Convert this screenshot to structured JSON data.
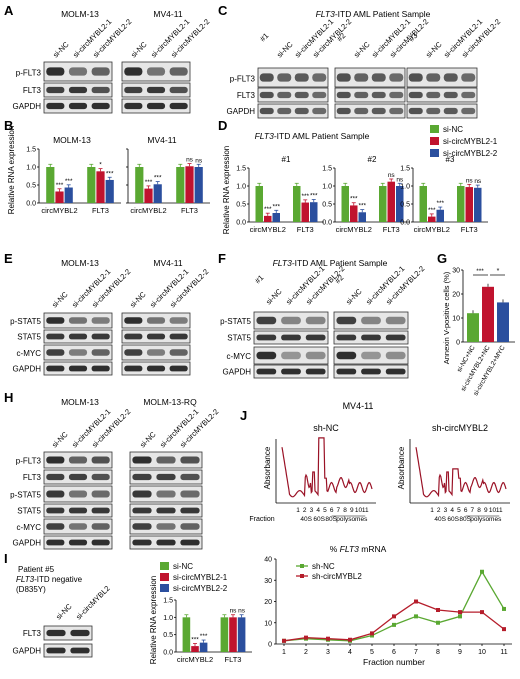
{
  "colors": {
    "nc": "#5aa832",
    "c1": "#c0132e",
    "c2": "#2b4f9e",
    "trace": "#9a1226",
    "shnc": "#5aa832",
    "shc": "#b51d2b"
  },
  "panels": {
    "A": {
      "letter": "A",
      "titles": [
        "MOLM-13",
        "MV4-11"
      ],
      "lanes": [
        [
          "si-NC",
          "si-circMYBL2-1",
          "si-circMYBL2-2"
        ],
        [
          "si-NC",
          "si-circMYBL2-1",
          "si-circMYBL2-2"
        ]
      ],
      "rows": [
        "p-FLT3",
        "FLT3",
        "GAPDH"
      ]
    },
    "B": {
      "letter": "B",
      "ylabel": "Relative RNA expression",
      "titles": [
        "MOLM-13",
        "MV4-11"
      ],
      "xcats": [
        "circMYBL2",
        "FLT3"
      ],
      "charts": [
        {
          "values": [
            [
              1.0,
              0.32,
              0.43
            ],
            [
              1.0,
              0.88,
              0.64
            ]
          ],
          "sig": [
            [
              "",
              "***",
              "***"
            ],
            [
              "",
              "*",
              "***"
            ]
          ]
        },
        {
          "values": [
            [
              1.0,
              0.4,
              0.52
            ],
            [
              1.0,
              1.02,
              1.0
            ]
          ],
          "sig": [
            [
              "",
              "***",
              "***"
            ],
            [
              "",
              "ns",
              "ns"
            ]
          ]
        }
      ],
      "yticks": [
        "0.0",
        "0.5",
        "1.0",
        "1.5"
      ]
    },
    "C": {
      "letter": "C",
      "title_italic": "FLT3",
      "title_rest": "-ITD AML Patient Sample",
      "groups": [
        "#1",
        "#2",
        "#3"
      ],
      "lanes": [
        "si-NC",
        "si-circMYBL2-1",
        "si-circMYBL2-2"
      ],
      "rows": [
        "p-FLT3",
        "FLT3",
        "GAPDH"
      ]
    },
    "D": {
      "letter": "D",
      "title_italic": "FLT3",
      "title_rest": "-ITD AML Patient Sample",
      "ylabel": "Relative RNA expression",
      "groups": [
        "#1",
        "#2",
        "#3"
      ],
      "xcats": [
        "circMYBL2",
        "FLT3"
      ],
      "charts": [
        {
          "values": [
            [
              1.0,
              0.17,
              0.25
            ],
            [
              1.0,
              0.54,
              0.55
            ]
          ],
          "sig": [
            [
              "",
              "***",
              "***"
            ],
            [
              "",
              "***",
              "***"
            ]
          ]
        },
        {
          "values": [
            [
              1.0,
              0.46,
              0.27
            ],
            [
              1.0,
              1.12,
              1.0
            ]
          ],
          "sig": [
            [
              "",
              "***",
              "***"
            ],
            [
              "",
              "ns",
              "ns"
            ]
          ]
        },
        {
          "values": [
            [
              1.0,
              0.15,
              0.34
            ],
            [
              1.0,
              0.97,
              0.95
            ]
          ],
          "sig": [
            [
              "",
              "***",
              "***"
            ],
            [
              "",
              "ns",
              "ns"
            ]
          ]
        }
      ],
      "yticks": [
        "0.0",
        "0.5",
        "1.0",
        "1.5"
      ]
    },
    "legend": [
      "si-NC",
      "si-circMYBL2-1",
      "si-circMYBL2-2"
    ],
    "E": {
      "letter": "E",
      "titles": [
        "MOLM-13",
        "MV4-11"
      ],
      "lanes": [
        "si-NC",
        "si-circMYBL2-1",
        "si-circMYBL2-2"
      ],
      "rows": [
        "p-STAT5",
        "STAT5",
        "c-MYC",
        "GAPDH"
      ]
    },
    "F": {
      "letter": "F",
      "title_italic": "FLT3",
      "title_rest": "-ITD AML Patient Sample",
      "groups": [
        "#1",
        "#2"
      ],
      "lanes": [
        "si-NC",
        "si-circMYBL2-1",
        "si-circMYBL2-2"
      ],
      "rows": [
        "p-STAT5",
        "STAT5",
        "c-MYC",
        "GAPDH"
      ]
    },
    "G": {
      "letter": "G",
      "ylabel": "Annexin V-positive cells (%)",
      "yticks": [
        "0",
        "10",
        "20",
        "30"
      ],
      "values": [
        12,
        23,
        16.5
      ],
      "cats": [
        "si-NC+NC",
        "si-circMYBL2+NC",
        "si-circMYBL2+MYC"
      ],
      "sig": [
        "***",
        "*"
      ]
    },
    "H": {
      "letter": "H",
      "titles": [
        "MOLM-13",
        "MOLM-13-RQ"
      ],
      "lanes": [
        "si-NC",
        "si-circMYBL2-1",
        "si-circMYBL2-2"
      ],
      "rows": [
        "p-FLT3",
        "FLT3",
        "p-STAT5",
        "STAT5",
        "c-MYC",
        "GAPDH"
      ]
    },
    "I": {
      "letter": "I",
      "patient": "Patient #5",
      "line2_italic": "FLT3",
      "line2_rest": "-ITD negative",
      "line3": "(D835Y)",
      "lanes": [
        "si-NC",
        "si-circMYBL2"
      ],
      "rows": [
        "FLT3",
        "GAPDH"
      ],
      "ylabel": "Relative RNA expression",
      "xcats": [
        "circMYBL2",
        "FLT3"
      ],
      "yticks": [
        "0.0",
        "0.5",
        "1.0",
        "1.5"
      ],
      "values": [
        [
          1.0,
          0.17,
          0.27
        ],
        [
          1.0,
          1.0,
          1.0
        ]
      ],
      "sig": [
        [
          "",
          "***",
          "***"
        ],
        [
          "",
          "ns",
          "ns"
        ]
      ]
    },
    "J": {
      "letter": "J",
      "title": "MV4-11",
      "profiles": [
        "sh-NC",
        "sh-circMYBL2"
      ],
      "ylabel": "Absorbance",
      "fraction_label": "Fraction",
      "fractions": [
        "1",
        "2",
        "3",
        "4",
        "5",
        "6",
        "7",
        "8",
        "9",
        "10",
        "11"
      ],
      "ribo": [
        "40S",
        "60S",
        "80S",
        "polysomes"
      ],
      "line_title_pre": "% ",
      "line_title_italic": "FLT3",
      "line_title_post": " mRNA",
      "xlabel": "Fraction number",
      "yticks": [
        "0",
        "10",
        "20",
        "30",
        "40"
      ]
    }
  },
  "chart_data": {
    "type": "line",
    "title": "% FLT3 mRNA",
    "xlabel": "Fraction number",
    "ylabel": "",
    "ylim": [
      0,
      40
    ],
    "x": [
      1,
      2,
      3,
      4,
      5,
      6,
      7,
      8,
      9,
      10,
      11
    ],
    "series": [
      {
        "name": "sh-NC",
        "values": [
          1.5,
          2.5,
          2,
          1.5,
          4,
          9,
          13,
          10,
          13,
          34,
          16.5
        ]
      },
      {
        "name": "sh-circMYBL2",
        "values": [
          1.5,
          3,
          2.5,
          2,
          5,
          13,
          20,
          16,
          15,
          15,
          7
        ]
      }
    ]
  }
}
